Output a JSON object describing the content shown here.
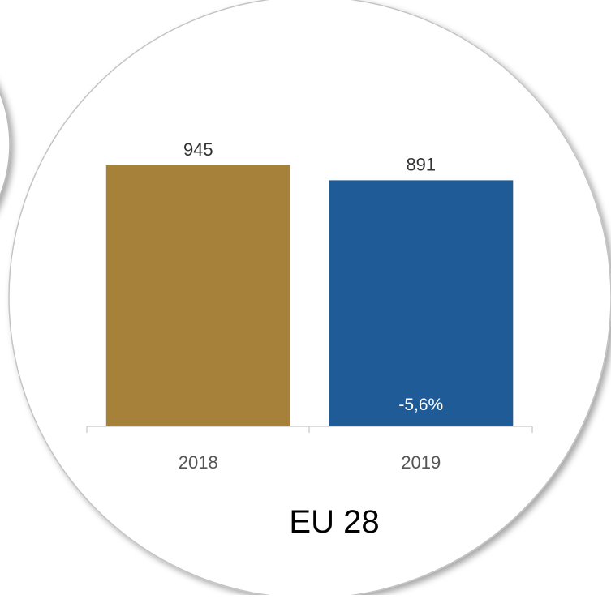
{
  "chart_data": {
    "type": "bar",
    "title": "EU 28",
    "categories": [
      "2018",
      "2019"
    ],
    "values": [
      945,
      891
    ],
    "value_labels": [
      "945",
      "891"
    ],
    "change_label": "-5,6%",
    "bar_colors": [
      "#A5813A",
      "#1F5C97"
    ],
    "ylim": [
      0,
      1000
    ],
    "grid": false,
    "legend": "none"
  }
}
